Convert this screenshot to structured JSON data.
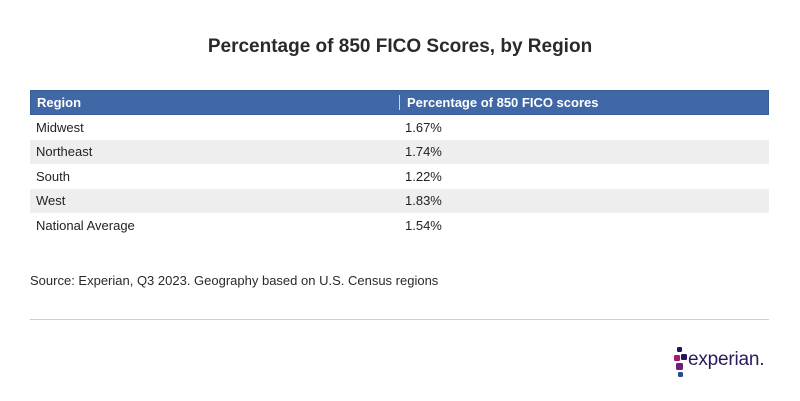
{
  "chart_data": {
    "type": "table",
    "title": "Percentage of 850 FICO Scores, by Region",
    "columns": [
      "Region",
      "Percentage of 850 FICO scores"
    ],
    "rows": [
      {
        "region": "Midwest",
        "percentage": "1.67%"
      },
      {
        "region": "Northeast",
        "percentage": "1.74%"
      },
      {
        "region": "South",
        "percentage": "1.22%"
      },
      {
        "region": "West",
        "percentage": "1.83%"
      },
      {
        "region": "National Average",
        "percentage": "1.54%"
      }
    ],
    "source": "Source: Experian, Q3 2023. Geography based on U.S. Census regions"
  },
  "logo": {
    "text": "experian.",
    "colors": {
      "dark": "#26135b",
      "magenta": "#b1127a",
      "purple": "#6d2077",
      "blue": "#1d4f91",
      "text": "#2b1a5b"
    }
  },
  "colors": {
    "header_bg": "#4168a6",
    "alt_row": "#eeeeee"
  }
}
